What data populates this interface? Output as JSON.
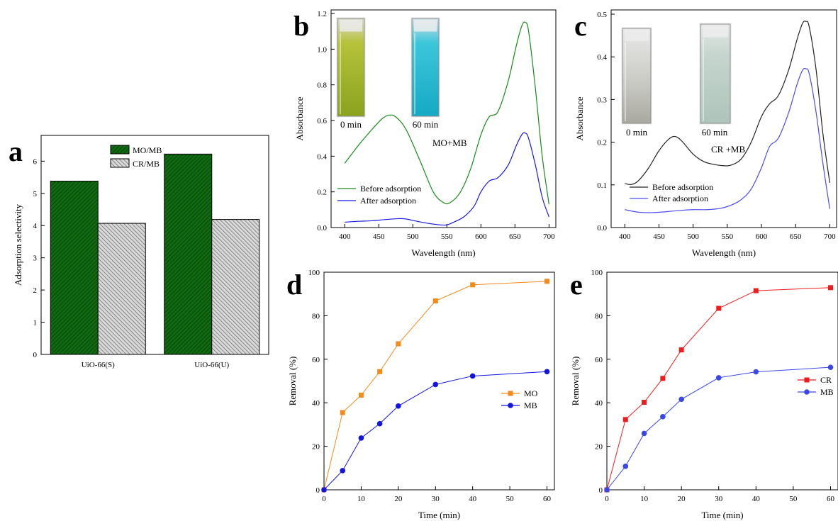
{
  "chart_data": [
    {
      "panel": "a",
      "type": "bar",
      "categories": [
        "UiO-66(S)",
        "UiO-66(U)"
      ],
      "series": [
        {
          "name": "MO/MB",
          "values": [
            5.38,
            6.22
          ],
          "color": "#0f6a12",
          "pattern": "forward-hatch"
        },
        {
          "name": "CR/MB",
          "values": [
            4.07,
            4.19
          ],
          "color": "#bdbdbd",
          "pattern": "back-hatch"
        }
      ],
      "ylabel": "Adsorption selectivity",
      "ylim": [
        0,
        6.8
      ],
      "yticks": [
        "0",
        "1",
        "2",
        "3",
        "4",
        "5",
        "6"
      ],
      "legend": "top-center"
    },
    {
      "panel": "b",
      "type": "line",
      "xlabel": "Wavelength (nm)",
      "ylabel": "Absorbance",
      "xlim": [
        380,
        710
      ],
      "ylim": [
        0,
        1.22
      ],
      "xticks": [
        "400",
        "450",
        "500",
        "550",
        "600",
        "650",
        "700"
      ],
      "yticks": [
        "0.0",
        "0.2",
        "0.4",
        "0.6",
        "0.8",
        "1.0",
        "1.2"
      ],
      "annotation": "MO+MB",
      "inset_labels": [
        "0 min",
        "60 min"
      ],
      "legend": "lower-left",
      "series": [
        {
          "name": "Before adsorption",
          "color": "#1a8a1a",
          "x": [
            400,
            420,
            440,
            455,
            465,
            475,
            490,
            510,
            530,
            545,
            555,
            570,
            585,
            600,
            612,
            625,
            640,
            652,
            660,
            665,
            670,
            680,
            690,
            700
          ],
          "y": [
            0.36,
            0.46,
            0.55,
            0.61,
            0.63,
            0.62,
            0.55,
            0.38,
            0.2,
            0.14,
            0.14,
            0.2,
            0.33,
            0.52,
            0.62,
            0.65,
            0.82,
            1.02,
            1.13,
            1.15,
            1.1,
            0.78,
            0.4,
            0.13
          ]
        },
        {
          "name": "After adsorption",
          "color": "#1818e6",
          "x": [
            400,
            420,
            440,
            460,
            480,
            490,
            500,
            520,
            540,
            550,
            560,
            575,
            590,
            600,
            612,
            625,
            640,
            652,
            660,
            665,
            670,
            680,
            690,
            700
          ],
          "y": [
            0.03,
            0.035,
            0.038,
            0.045,
            0.05,
            0.048,
            0.04,
            0.025,
            0.015,
            0.015,
            0.03,
            0.06,
            0.12,
            0.2,
            0.26,
            0.28,
            0.35,
            0.46,
            0.52,
            0.53,
            0.5,
            0.35,
            0.17,
            0.06
          ]
        }
      ]
    },
    {
      "panel": "c",
      "type": "line",
      "xlabel": "Wavelength (nm)",
      "ylabel": "Absorbance",
      "xlim": [
        380,
        710
      ],
      "ylim": [
        0,
        0.51
      ],
      "xticks": [
        "400",
        "450",
        "500",
        "550",
        "600",
        "650",
        "700"
      ],
      "yticks": [
        "0.0",
        "0.1",
        "0.2",
        "0.3",
        "0.4",
        "0.5"
      ],
      "annotation": "CR +MB",
      "inset_labels": [
        "0 min",
        "60 min"
      ],
      "legend": "lower-left",
      "series": [
        {
          "name": "Before adsorption",
          "color": "#222222",
          "x": [
            400,
            410,
            420,
            435,
            450,
            465,
            475,
            485,
            500,
            515,
            530,
            545,
            555,
            570,
            585,
            600,
            612,
            625,
            640,
            652,
            660,
            665,
            670,
            680,
            690,
            700
          ],
          "y": [
            0.103,
            0.101,
            0.11,
            0.14,
            0.18,
            0.208,
            0.213,
            0.2,
            0.172,
            0.155,
            0.148,
            0.145,
            0.146,
            0.16,
            0.2,
            0.26,
            0.29,
            0.31,
            0.37,
            0.44,
            0.478,
            0.483,
            0.47,
            0.37,
            0.22,
            0.105
          ]
        },
        {
          "name": "After adsorption",
          "color": "#4a4af2",
          "x": [
            400,
            420,
            440,
            460,
            480,
            500,
            520,
            540,
            555,
            570,
            585,
            600,
            612,
            625,
            640,
            652,
            660,
            665,
            670,
            680,
            690,
            700
          ],
          "y": [
            0.042,
            0.036,
            0.035,
            0.037,
            0.04,
            0.042,
            0.042,
            0.045,
            0.052,
            0.065,
            0.09,
            0.14,
            0.19,
            0.21,
            0.27,
            0.335,
            0.368,
            0.372,
            0.36,
            0.27,
            0.15,
            0.044
          ]
        }
      ]
    },
    {
      "panel": "d",
      "type": "line",
      "xlabel": "Time (min)",
      "ylabel": "Removal (%)",
      "xlim": [
        0,
        62
      ],
      "ylim": [
        0,
        100
      ],
      "xticks": [
        "0",
        "10",
        "20",
        "30",
        "40",
        "50",
        "60"
      ],
      "yticks": [
        "0",
        "20",
        "40",
        "60",
        "80",
        "100"
      ],
      "legend": "middle-right",
      "series": [
        {
          "name": "MO",
          "color": "#f28a1c",
          "marker": "square",
          "x": [
            0,
            5,
            10,
            15,
            20,
            30,
            40,
            60
          ],
          "y": [
            0,
            35.5,
            43.5,
            54.3,
            67.1,
            86.8,
            94.2,
            95.8
          ]
        },
        {
          "name": "MB",
          "color": "#1414e0",
          "marker": "circle",
          "x": [
            0,
            5,
            10,
            15,
            20,
            30,
            40,
            60
          ],
          "y": [
            0,
            8.8,
            23.8,
            30.4,
            38.5,
            48.4,
            52.3,
            54.3
          ]
        }
      ]
    },
    {
      "panel": "e",
      "type": "line",
      "xlabel": "Time (min)",
      "ylabel": "Removal (%)",
      "xlim": [
        0,
        62
      ],
      "ylim": [
        0,
        100
      ],
      "xticks": [
        "0",
        "10",
        "20",
        "30",
        "40",
        "50",
        "60"
      ],
      "yticks": [
        "0",
        "20",
        "40",
        "60",
        "80",
        "100"
      ],
      "legend": "middle-right",
      "series": [
        {
          "name": "CR",
          "color": "#ee1c1c",
          "marker": "square",
          "x": [
            0,
            5,
            10,
            15,
            20,
            30,
            40,
            60
          ],
          "y": [
            0,
            32.3,
            40.2,
            51.2,
            64.3,
            83.4,
            91.5,
            92.9
          ]
        },
        {
          "name": "MB",
          "color": "#3a48e8",
          "marker": "circle",
          "x": [
            0,
            5,
            10,
            15,
            20,
            30,
            40,
            60
          ],
          "y": [
            0,
            10.8,
            25.9,
            33.6,
            41.6,
            51.5,
            54.2,
            56.3
          ]
        }
      ]
    }
  ]
}
